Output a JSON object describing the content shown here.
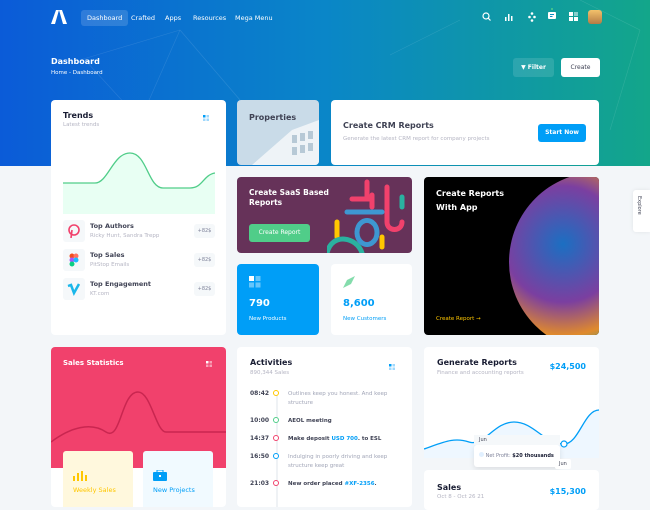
{
  "header": {
    "nav": [
      "Dashboard",
      "Crafted",
      "Apps",
      "Resources",
      "Mega Menu"
    ],
    "title": "Dashboard",
    "breadcrumb": [
      "Home",
      "-",
      "Dashboard"
    ],
    "filter": "Filter",
    "create": "Create"
  },
  "trends": {
    "title": "Trends",
    "subtitle": "Latest trends",
    "items": [
      {
        "title": "Top Authors",
        "sub": "Ricky Hunt, Sandra Trepp",
        "badge": "+82$",
        "icon": "pinterest-icon"
      },
      {
        "title": "Top Sales",
        "sub": "PitStop Emails",
        "badge": "+82$",
        "icon": "figma-icon"
      },
      {
        "title": "Top Engagement",
        "sub": "KT.com",
        "badge": "+82$",
        "icon": "vimeo-icon"
      }
    ]
  },
  "properties": {
    "title": "Properties"
  },
  "crm": {
    "title": "Create CRM Reports",
    "subtitle": "Generate the latest CRM report for company projects",
    "button": "Start Now"
  },
  "saas": {
    "title": "Create SaaS Based Reports",
    "button": "Create Report"
  },
  "app": {
    "title": "Create Reports With App",
    "link": "Create Report"
  },
  "products": {
    "value": "790",
    "label": "New Products"
  },
  "customers": {
    "value": "8,600",
    "label": "New Customers"
  },
  "sales_stats": {
    "title": "Sales Statistics",
    "weekly": "Weekly Sales",
    "projects": "New Projects"
  },
  "activities": {
    "title": "Activities",
    "subtitle": "890,344 Sales",
    "items": [
      {
        "time": "08:42",
        "text": "Outlines keep you honest. And keep structure",
        "color": "#ffc700",
        "muted": true
      },
      {
        "time": "10:00",
        "text": "AEOL meeting",
        "color": "#50cd89"
      },
      {
        "time": "14:37",
        "pre": "Make deposit ",
        "link": "USD 700",
        "post": ". to ESL",
        "color": "#f1416c"
      },
      {
        "time": "16:50",
        "text": "Indulging in poorly driving and keep structure keep great",
        "color": "#009ef7",
        "muted": true
      },
      {
        "time": "21:03",
        "pre": "New order placed ",
        "link": "#XF-2356",
        "post": ".",
        "color": "#f1416c"
      }
    ]
  },
  "generate": {
    "title": "Generate Reports",
    "subtitle": "Finance and accounting reports",
    "amount": "$24,500",
    "tooltip_title": "Jun",
    "tooltip_label": "Net Profit:",
    "tooltip_value": "$20 thousands",
    "axis_label": "Jun"
  },
  "sales": {
    "title": "Sales",
    "subtitle": "Oct 8 - Oct 26 21",
    "amount": "$15,300"
  },
  "explore": "Explore",
  "colors": {
    "primary": "#009ef7",
    "success": "#50cd89",
    "danger": "#f1416c",
    "saas": "#663259"
  }
}
